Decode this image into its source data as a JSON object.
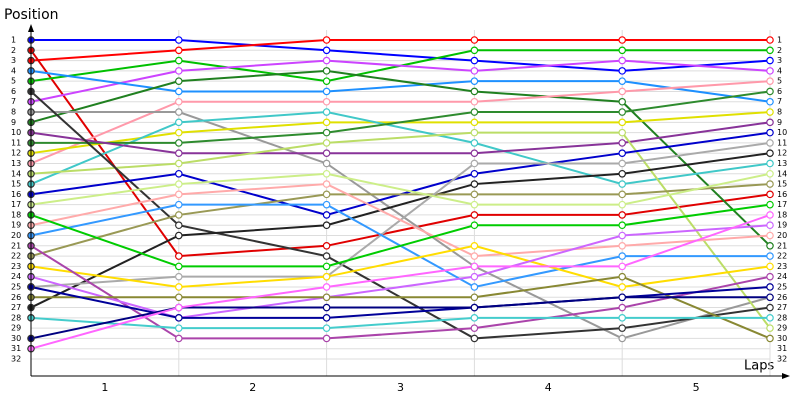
{
  "chart_data": {
    "type": "line",
    "y_label": "Position",
    "x_label": "Laps",
    "x": [
      0,
      1,
      2,
      3,
      4,
      5
    ],
    "xlim": [
      0,
      5
    ],
    "xticks": [
      {
        "value": 0.5,
        "label": "1"
      },
      {
        "value": 1.5,
        "label": "2"
      },
      {
        "value": 2.5,
        "label": "3"
      },
      {
        "value": 3.5,
        "label": "4"
      },
      {
        "value": 4.5,
        "label": "5"
      }
    ],
    "ylim": [
      1,
      32
    ],
    "inverted": true,
    "yticks": [
      1,
      2,
      3,
      4,
      5,
      6,
      7,
      8,
      9,
      10,
      11,
      12,
      13,
      14,
      15,
      16,
      17,
      18,
      19,
      20,
      21,
      22,
      23,
      24,
      25,
      26,
      27,
      28,
      29,
      30,
      31,
      32
    ],
    "grid": true,
    "series": [
      {
        "color": "#0000ff",
        "values": [
          1,
          1,
          2,
          3,
          4,
          3
        ]
      },
      {
        "color": "#ff0000",
        "values": [
          3,
          2,
          1,
          1,
          1,
          1
        ]
      },
      {
        "color": "#e00000",
        "values": [
          2,
          22,
          21,
          18,
          18,
          16
        ]
      },
      {
        "color": "#00c000",
        "values": [
          5,
          3,
          5,
          2,
          2,
          2
        ]
      },
      {
        "color": "#cc44ff",
        "values": [
          7,
          4,
          3,
          4,
          3,
          4
        ]
      },
      {
        "color": "#1e90ff",
        "values": [
          4,
          6,
          6,
          5,
          5,
          7
        ]
      },
      {
        "color": "#208020",
        "values": [
          9,
          5,
          4,
          6,
          7,
          21
        ]
      },
      {
        "color": "#ff99aa",
        "values": [
          13,
          7,
          7,
          7,
          6,
          5
        ]
      },
      {
        "color": "#999999",
        "values": [
          8,
          8,
          13,
          23,
          30,
          26
        ]
      },
      {
        "color": "#e0e000",
        "values": [
          12,
          10,
          9,
          9,
          9,
          8
        ]
      },
      {
        "color": "#40c8c8",
        "values": [
          15,
          9,
          8,
          11,
          15,
          13
        ]
      },
      {
        "color": "#2e8b2e",
        "values": [
          11,
          11,
          10,
          8,
          8,
          6
        ]
      },
      {
        "color": "#883399",
        "values": [
          10,
          12,
          12,
          12,
          11,
          9
        ]
      },
      {
        "color": "#bbdd66",
        "values": [
          14,
          13,
          11,
          10,
          10,
          29
        ]
      },
      {
        "color": "#333333",
        "values": [
          6,
          19,
          22,
          30,
          29,
          27
        ]
      },
      {
        "color": "#222222",
        "values": [
          27,
          20,
          19,
          15,
          14,
          12
        ]
      },
      {
        "color": "#0000cc",
        "values": [
          16,
          14,
          18,
          14,
          12,
          10
        ]
      },
      {
        "color": "#999955",
        "values": [
          22,
          18,
          16,
          16,
          16,
          15
        ]
      },
      {
        "color": "#aaaaaa",
        "values": [
          25,
          24,
          24,
          13,
          13,
          11
        ]
      },
      {
        "color": "#ccee88",
        "values": [
          17,
          15,
          14,
          17,
          17,
          14
        ]
      },
      {
        "color": "#3399ff",
        "values": [
          20,
          17,
          17,
          25,
          22,
          22
        ]
      },
      {
        "color": "#ffaaaa",
        "values": [
          19,
          16,
          15,
          22,
          21,
          20
        ]
      },
      {
        "color": "#00cc00",
        "values": [
          18,
          23,
          23,
          19,
          19,
          17
        ]
      },
      {
        "color": "#ffdd00",
        "values": [
          23,
          25,
          24,
          21,
          25,
          23
        ]
      },
      {
        "color": "#aa44aa",
        "values": [
          21,
          30,
          30,
          29,
          27,
          24
        ]
      },
      {
        "color": "#cc66ff",
        "values": [
          24,
          28,
          26,
          24,
          20,
          19
        ]
      },
      {
        "color": "#888833",
        "values": [
          26,
          26,
          26,
          26,
          24,
          30
        ]
      },
      {
        "color": "#000099",
        "values": [
          25,
          28,
          28,
          27,
          26,
          25
        ]
      },
      {
        "color": "#44cccc",
        "values": [
          28,
          29,
          29,
          28,
          28,
          28
        ]
      },
      {
        "color": "#000080",
        "values": [
          30,
          27,
          27,
          27,
          26,
          26
        ]
      },
      {
        "color": "#ff66ff",
        "values": [
          31,
          27,
          25,
          23,
          23,
          18
        ]
      }
    ]
  }
}
